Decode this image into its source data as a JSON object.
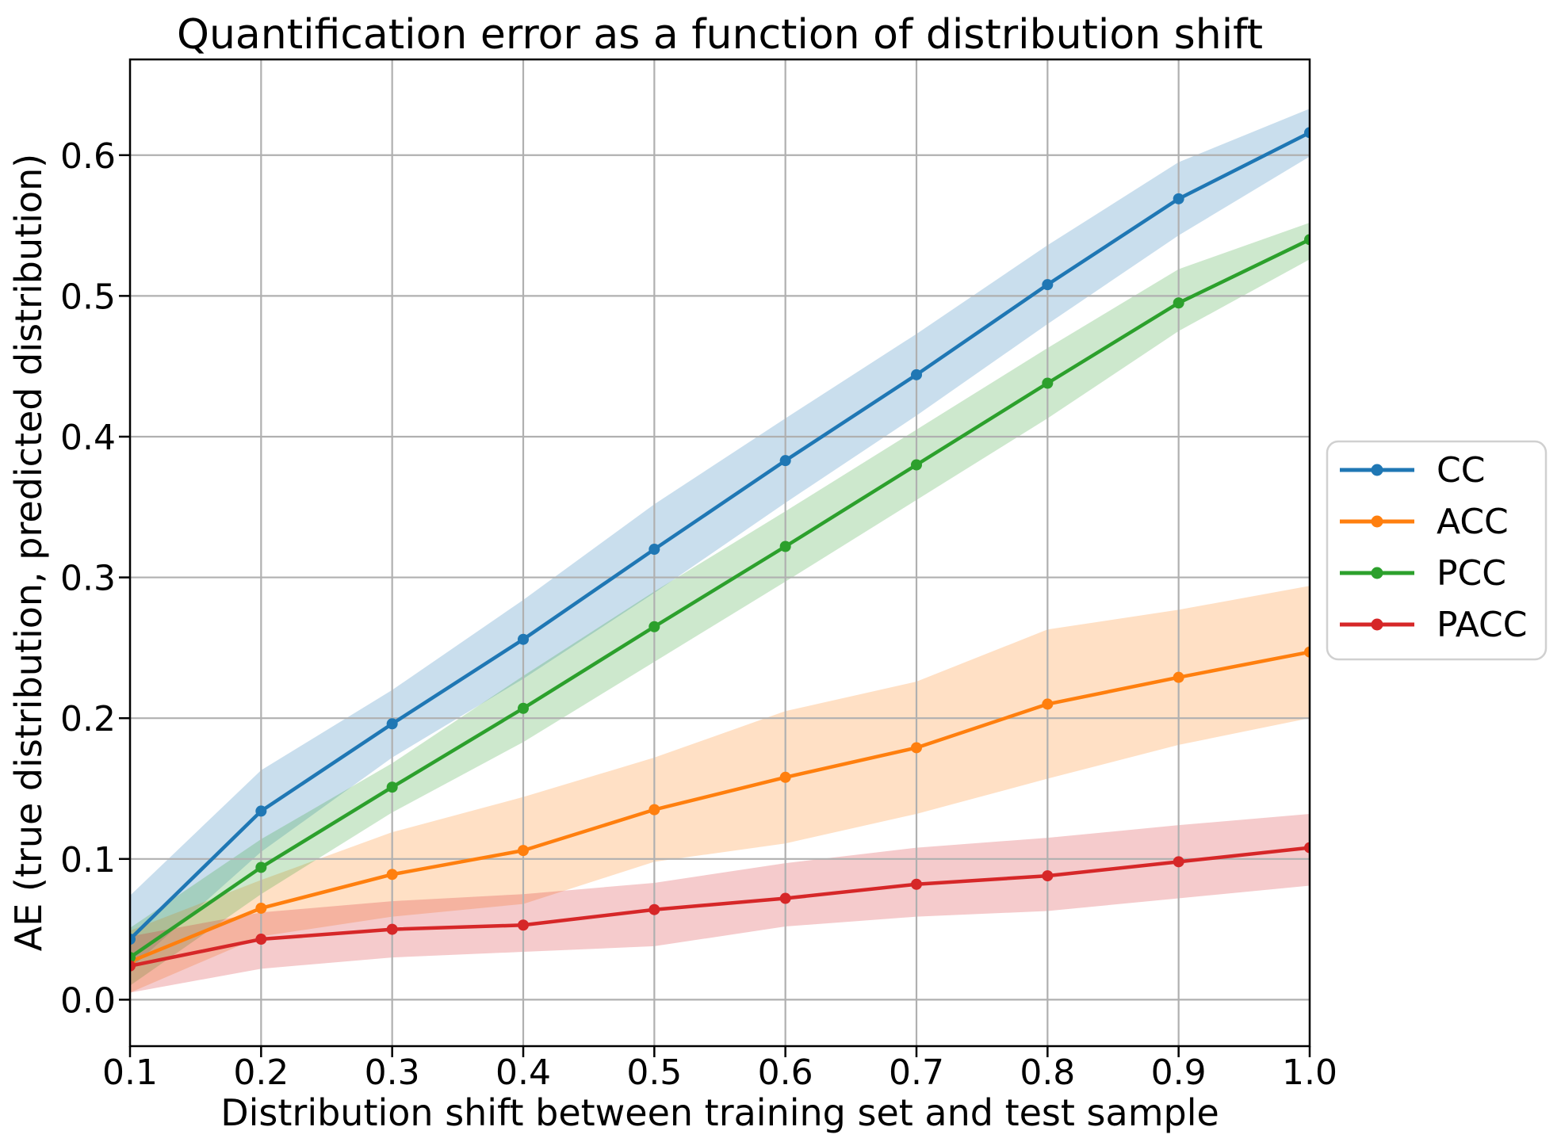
{
  "chart_data": {
    "type": "line",
    "title": "Quantification error as a function of distribution shift",
    "xlabel": "Distribution shift between training set and test sample",
    "ylabel": "AE (true distribution, predicted distribution)",
    "x": [
      0.1,
      0.2,
      0.3,
      0.4,
      0.5,
      0.6,
      0.7,
      0.8,
      0.9,
      1.0
    ],
    "x_tick_labels": [
      "0.1",
      "0.2",
      "0.3",
      "0.4",
      "0.5",
      "0.6",
      "0.7",
      "0.8",
      "0.9",
      "1.0"
    ],
    "y_ticks": [
      0.0,
      0.1,
      0.2,
      0.3,
      0.4,
      0.5,
      0.6
    ],
    "y_tick_labels": [
      "0.0",
      "0.1",
      "0.2",
      "0.3",
      "0.4",
      "0.5",
      "0.6"
    ],
    "xlim": [
      0.1,
      1.0
    ],
    "ylim": [
      -0.033,
      0.668
    ],
    "grid": true,
    "legend_position": "right-outside",
    "band_alpha": 0.24,
    "style": {
      "background": "#ffffff",
      "grid_color": "#b0b0b0",
      "spine_color": "#000000",
      "text_color": "#000000",
      "legend_border_color": "#d0d0d0",
      "legend_fill": "#ffffff"
    },
    "series": [
      {
        "name": "CC",
        "color": "#1f77b4",
        "values": [
          0.043,
          0.134,
          0.196,
          0.256,
          0.32,
          0.383,
          0.444,
          0.508,
          0.569,
          0.616
        ],
        "band_lower": [
          0.022,
          0.105,
          0.172,
          0.228,
          0.289,
          0.353,
          0.415,
          0.48,
          0.543,
          0.599
        ],
        "band_upper": [
          0.074,
          0.163,
          0.22,
          0.284,
          0.352,
          0.413,
          0.473,
          0.536,
          0.595,
          0.633
        ]
      },
      {
        "name": "ACC",
        "color": "#ff7f0e",
        "values": [
          0.027,
          0.065,
          0.089,
          0.106,
          0.135,
          0.158,
          0.179,
          0.21,
          0.229,
          0.247
        ],
        "band_lower": [
          0.005,
          0.045,
          0.059,
          0.068,
          0.098,
          0.111,
          0.132,
          0.157,
          0.181,
          0.2
        ],
        "band_upper": [
          0.049,
          0.085,
          0.119,
          0.144,
          0.172,
          0.205,
          0.226,
          0.263,
          0.277,
          0.294
        ]
      },
      {
        "name": "PCC",
        "color": "#2ca02c",
        "values": [
          0.03,
          0.094,
          0.151,
          0.207,
          0.265,
          0.322,
          0.38,
          0.438,
          0.495,
          0.54
        ],
        "band_lower": [
          0.01,
          0.075,
          0.133,
          0.183,
          0.24,
          0.297,
          0.355,
          0.413,
          0.475,
          0.526
        ],
        "band_upper": [
          0.051,
          0.114,
          0.168,
          0.23,
          0.29,
          0.347,
          0.405,
          0.463,
          0.519,
          0.552
        ]
      },
      {
        "name": "PACC",
        "color": "#d62728",
        "values": [
          0.024,
          0.043,
          0.05,
          0.053,
          0.064,
          0.072,
          0.082,
          0.088,
          0.098,
          0.108
        ],
        "band_lower": [
          0.005,
          0.022,
          0.03,
          0.034,
          0.038,
          0.052,
          0.059,
          0.063,
          0.072,
          0.081
        ],
        "band_upper": [
          0.045,
          0.062,
          0.07,
          0.075,
          0.083,
          0.097,
          0.108,
          0.115,
          0.124,
          0.132
        ]
      }
    ]
  }
}
